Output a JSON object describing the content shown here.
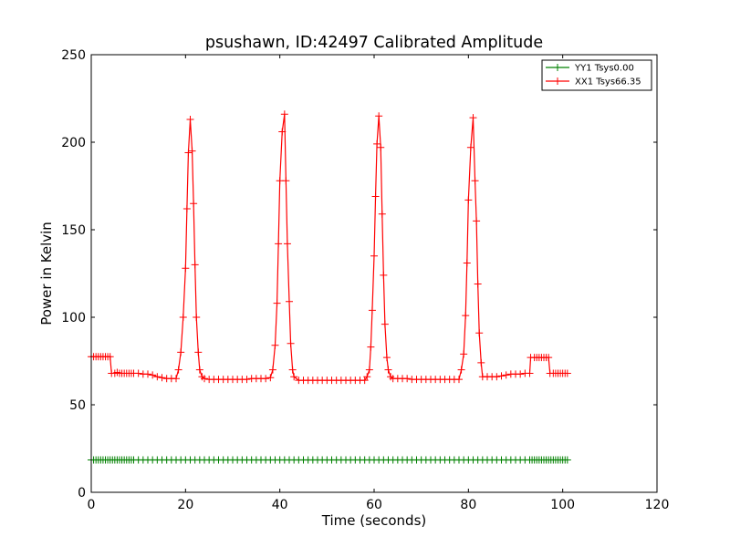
{
  "chart_data": {
    "type": "line",
    "title": "psushawn, ID:42497 Calibrated Amplitude",
    "xlabel": "Time (seconds)",
    "ylabel": "Power in Kelvin",
    "xlim": [
      0,
      120
    ],
    "ylim": [
      0,
      250
    ],
    "xticks": [
      0,
      20,
      40,
      60,
      80,
      100,
      120
    ],
    "yticks": [
      0,
      50,
      100,
      150,
      200,
      250
    ],
    "xtick_labels": [
      "0",
      "20",
      "40",
      "60",
      "80",
      "100",
      "120"
    ],
    "ytick_labels": [
      "0",
      "50",
      "100",
      "150",
      "200",
      "250"
    ],
    "grid": false,
    "legend_position": "top-right",
    "marker": "+",
    "series": [
      {
        "name": "YY1 Tsys0.00",
        "color": "#008000",
        "points": [
          [
            0,
            18.5
          ],
          [
            0.5,
            18.5
          ],
          [
            1,
            18.5
          ],
          [
            1.5,
            18.5
          ],
          [
            2,
            18.5
          ],
          [
            2.5,
            18.5
          ],
          [
            3,
            18.5
          ],
          [
            3.5,
            18.5
          ],
          [
            4,
            18.5
          ],
          [
            4.5,
            18.5
          ],
          [
            5,
            18.5
          ],
          [
            5.5,
            18.5
          ],
          [
            6,
            18.5
          ],
          [
            6.5,
            18.5
          ],
          [
            7,
            18.5
          ],
          [
            7.5,
            18.5
          ],
          [
            8,
            18.5
          ],
          [
            8.5,
            18.5
          ],
          [
            9,
            18.5
          ],
          [
            10,
            18.5
          ],
          [
            11,
            18.5
          ],
          [
            12,
            18.5
          ],
          [
            13,
            18.5
          ],
          [
            14,
            18.5
          ],
          [
            15,
            18.5
          ],
          [
            16,
            18.5
          ],
          [
            17,
            18.5
          ],
          [
            18,
            18.5
          ],
          [
            19,
            18.5
          ],
          [
            20,
            18.5
          ],
          [
            21,
            18.5
          ],
          [
            22,
            18.5
          ],
          [
            23,
            18.5
          ],
          [
            24,
            18.5
          ],
          [
            25,
            18.5
          ],
          [
            26,
            18.5
          ],
          [
            27,
            18.5
          ],
          [
            28,
            18.5
          ],
          [
            29,
            18.5
          ],
          [
            30,
            18.5
          ],
          [
            31,
            18.5
          ],
          [
            32,
            18.5
          ],
          [
            33,
            18.5
          ],
          [
            34,
            18.5
          ],
          [
            35,
            18.5
          ],
          [
            36,
            18.5
          ],
          [
            37,
            18.5
          ],
          [
            38,
            18.5
          ],
          [
            39,
            18.5
          ],
          [
            40,
            18.5
          ],
          [
            41,
            18.5
          ],
          [
            42,
            18.5
          ],
          [
            43,
            18.5
          ],
          [
            44,
            18.5
          ],
          [
            45,
            18.5
          ],
          [
            46,
            18.5
          ],
          [
            47,
            18.5
          ],
          [
            48,
            18.5
          ],
          [
            49,
            18.5
          ],
          [
            50,
            18.5
          ],
          [
            51,
            18.5
          ],
          [
            52,
            18.5
          ],
          [
            53,
            18.5
          ],
          [
            54,
            18.5
          ],
          [
            55,
            18.5
          ],
          [
            56,
            18.5
          ],
          [
            57,
            18.5
          ],
          [
            58,
            18.5
          ],
          [
            59,
            18.5
          ],
          [
            60,
            18.5
          ],
          [
            61,
            18.5
          ],
          [
            62,
            18.5
          ],
          [
            63,
            18.5
          ],
          [
            64,
            18.5
          ],
          [
            65,
            18.5
          ],
          [
            66,
            18.5
          ],
          [
            67,
            18.5
          ],
          [
            68,
            18.5
          ],
          [
            69,
            18.5
          ],
          [
            70,
            18.5
          ],
          [
            71,
            18.5
          ],
          [
            72,
            18.5
          ],
          [
            73,
            18.5
          ],
          [
            74,
            18.5
          ],
          [
            75,
            18.5
          ],
          [
            76,
            18.5
          ],
          [
            77,
            18.5
          ],
          [
            78,
            18.5
          ],
          [
            79,
            18.5
          ],
          [
            80,
            18.5
          ],
          [
            81,
            18.5
          ],
          [
            82,
            18.5
          ],
          [
            83,
            18.5
          ],
          [
            84,
            18.5
          ],
          [
            85,
            18.5
          ],
          [
            86,
            18.5
          ],
          [
            87,
            18.5
          ],
          [
            88,
            18.5
          ],
          [
            89,
            18.5
          ],
          [
            90,
            18.5
          ],
          [
            91,
            18.5
          ],
          [
            92,
            18.5
          ],
          [
            93,
            18.5
          ],
          [
            93.5,
            18.5
          ],
          [
            94,
            18.5
          ],
          [
            94.5,
            18.5
          ],
          [
            95,
            18.5
          ],
          [
            95.5,
            18.5
          ],
          [
            96,
            18.5
          ],
          [
            96.5,
            18.5
          ],
          [
            97,
            18.5
          ],
          [
            97.5,
            18.5
          ],
          [
            98,
            18.5
          ],
          [
            98.5,
            18.5
          ],
          [
            99,
            18.5
          ],
          [
            99.5,
            18.5
          ],
          [
            100,
            18.5
          ],
          [
            100.5,
            18.5
          ],
          [
            101,
            18.5
          ]
        ]
      },
      {
        "name": "XX1 Tsys66.35",
        "color": "#ff0000",
        "points": [
          [
            0,
            77.5
          ],
          [
            0.5,
            77.5
          ],
          [
            1,
            77.5
          ],
          [
            1.5,
            77.5
          ],
          [
            2,
            77.5
          ],
          [
            2.5,
            77.5
          ],
          [
            3,
            77.5
          ],
          [
            3.5,
            77.5
          ],
          [
            4,
            77.5
          ],
          [
            4.3,
            68
          ],
          [
            5,
            68
          ],
          [
            5.5,
            68.5
          ],
          [
            6,
            68
          ],
          [
            6.5,
            68
          ],
          [
            7,
            68
          ],
          [
            7.5,
            68
          ],
          [
            8,
            68
          ],
          [
            8.5,
            68
          ],
          [
            9,
            68
          ],
          [
            10,
            68
          ],
          [
            11,
            67.5
          ],
          [
            12,
            67.5
          ],
          [
            13,
            67
          ],
          [
            14,
            66
          ],
          [
            15,
            65.5
          ],
          [
            16,
            65
          ],
          [
            17,
            65
          ],
          [
            18,
            65
          ],
          [
            18.5,
            70
          ],
          [
            19,
            80
          ],
          [
            19.5,
            100
          ],
          [
            20,
            128
          ],
          [
            20.3,
            162
          ],
          [
            20.6,
            194
          ],
          [
            21,
            213
          ],
          [
            21.4,
            195
          ],
          [
            21.7,
            165
          ],
          [
            22,
            130
          ],
          [
            22.3,
            100
          ],
          [
            22.7,
            80
          ],
          [
            23,
            70
          ],
          [
            23.5,
            66
          ],
          [
            24,
            65
          ],
          [
            25,
            64.5
          ],
          [
            26,
            64.5
          ],
          [
            27,
            64.5
          ],
          [
            28,
            64.5
          ],
          [
            29,
            64.5
          ],
          [
            30,
            64.5
          ],
          [
            31,
            64.5
          ],
          [
            32,
            64.5
          ],
          [
            33,
            64.5
          ],
          [
            34,
            65
          ],
          [
            35,
            65
          ],
          [
            36,
            65
          ],
          [
            37,
            65
          ],
          [
            38,
            65.5
          ],
          [
            38.5,
            70
          ],
          [
            39,
            84
          ],
          [
            39.4,
            108
          ],
          [
            39.7,
            142
          ],
          [
            40,
            178
          ],
          [
            40.5,
            206
          ],
          [
            41,
            216
          ],
          [
            41.3,
            178
          ],
          [
            41.6,
            142
          ],
          [
            42,
            109
          ],
          [
            42.3,
            85
          ],
          [
            42.7,
            70
          ],
          [
            43,
            66
          ],
          [
            44,
            64
          ],
          [
            45,
            64
          ],
          [
            46,
            64
          ],
          [
            47,
            64
          ],
          [
            48,
            64
          ],
          [
            49,
            64
          ],
          [
            50,
            64
          ],
          [
            51,
            64
          ],
          [
            52,
            64
          ],
          [
            53,
            64
          ],
          [
            54,
            64
          ],
          [
            55,
            64
          ],
          [
            56,
            64
          ],
          [
            57,
            64
          ],
          [
            58,
            64
          ],
          [
            58.5,
            66
          ],
          [
            59,
            70
          ],
          [
            59.3,
            83
          ],
          [
            59.6,
            104
          ],
          [
            60,
            135
          ],
          [
            60.3,
            169
          ],
          [
            60.6,
            199
          ],
          [
            61,
            215
          ],
          [
            61.4,
            197
          ],
          [
            61.7,
            159
          ],
          [
            62,
            124
          ],
          [
            62.3,
            96
          ],
          [
            62.7,
            77
          ],
          [
            63,
            70
          ],
          [
            63.5,
            66
          ],
          [
            64,
            65
          ],
          [
            65,
            65
          ],
          [
            66,
            65
          ],
          [
            67,
            65
          ],
          [
            68,
            64.5
          ],
          [
            69,
            64.5
          ],
          [
            70,
            64.5
          ],
          [
            71,
            64.5
          ],
          [
            72,
            64.5
          ],
          [
            73,
            64.5
          ],
          [
            74,
            64.5
          ],
          [
            75,
            64.5
          ],
          [
            76,
            64.5
          ],
          [
            77,
            64.5
          ],
          [
            78,
            64.5
          ],
          [
            78.5,
            70
          ],
          [
            79,
            79
          ],
          [
            79.4,
            101
          ],
          [
            79.7,
            131
          ],
          [
            80,
            167
          ],
          [
            80.5,
            197
          ],
          [
            81,
            214
          ],
          [
            81.4,
            178
          ],
          [
            81.7,
            155
          ],
          [
            82,
            119
          ],
          [
            82.3,
            91
          ],
          [
            82.7,
            74
          ],
          [
            83,
            66
          ],
          [
            84,
            66
          ],
          [
            85,
            66
          ],
          [
            86,
            66
          ],
          [
            87,
            66.5
          ],
          [
            88,
            67
          ],
          [
            89,
            67.5
          ],
          [
            90,
            67.5
          ],
          [
            91,
            67.5
          ],
          [
            92,
            68
          ],
          [
            93,
            68
          ],
          [
            93.2,
            77
          ],
          [
            94,
            77
          ],
          [
            94.5,
            77
          ],
          [
            95,
            77
          ],
          [
            95.5,
            77
          ],
          [
            96,
            77
          ],
          [
            96.5,
            77
          ],
          [
            97,
            77
          ],
          [
            97.3,
            68
          ],
          [
            98,
            68
          ],
          [
            98.5,
            68
          ],
          [
            99,
            68
          ],
          [
            99.5,
            68
          ],
          [
            100,
            68
          ],
          [
            100.5,
            68
          ],
          [
            101,
            68
          ]
        ]
      }
    ]
  }
}
